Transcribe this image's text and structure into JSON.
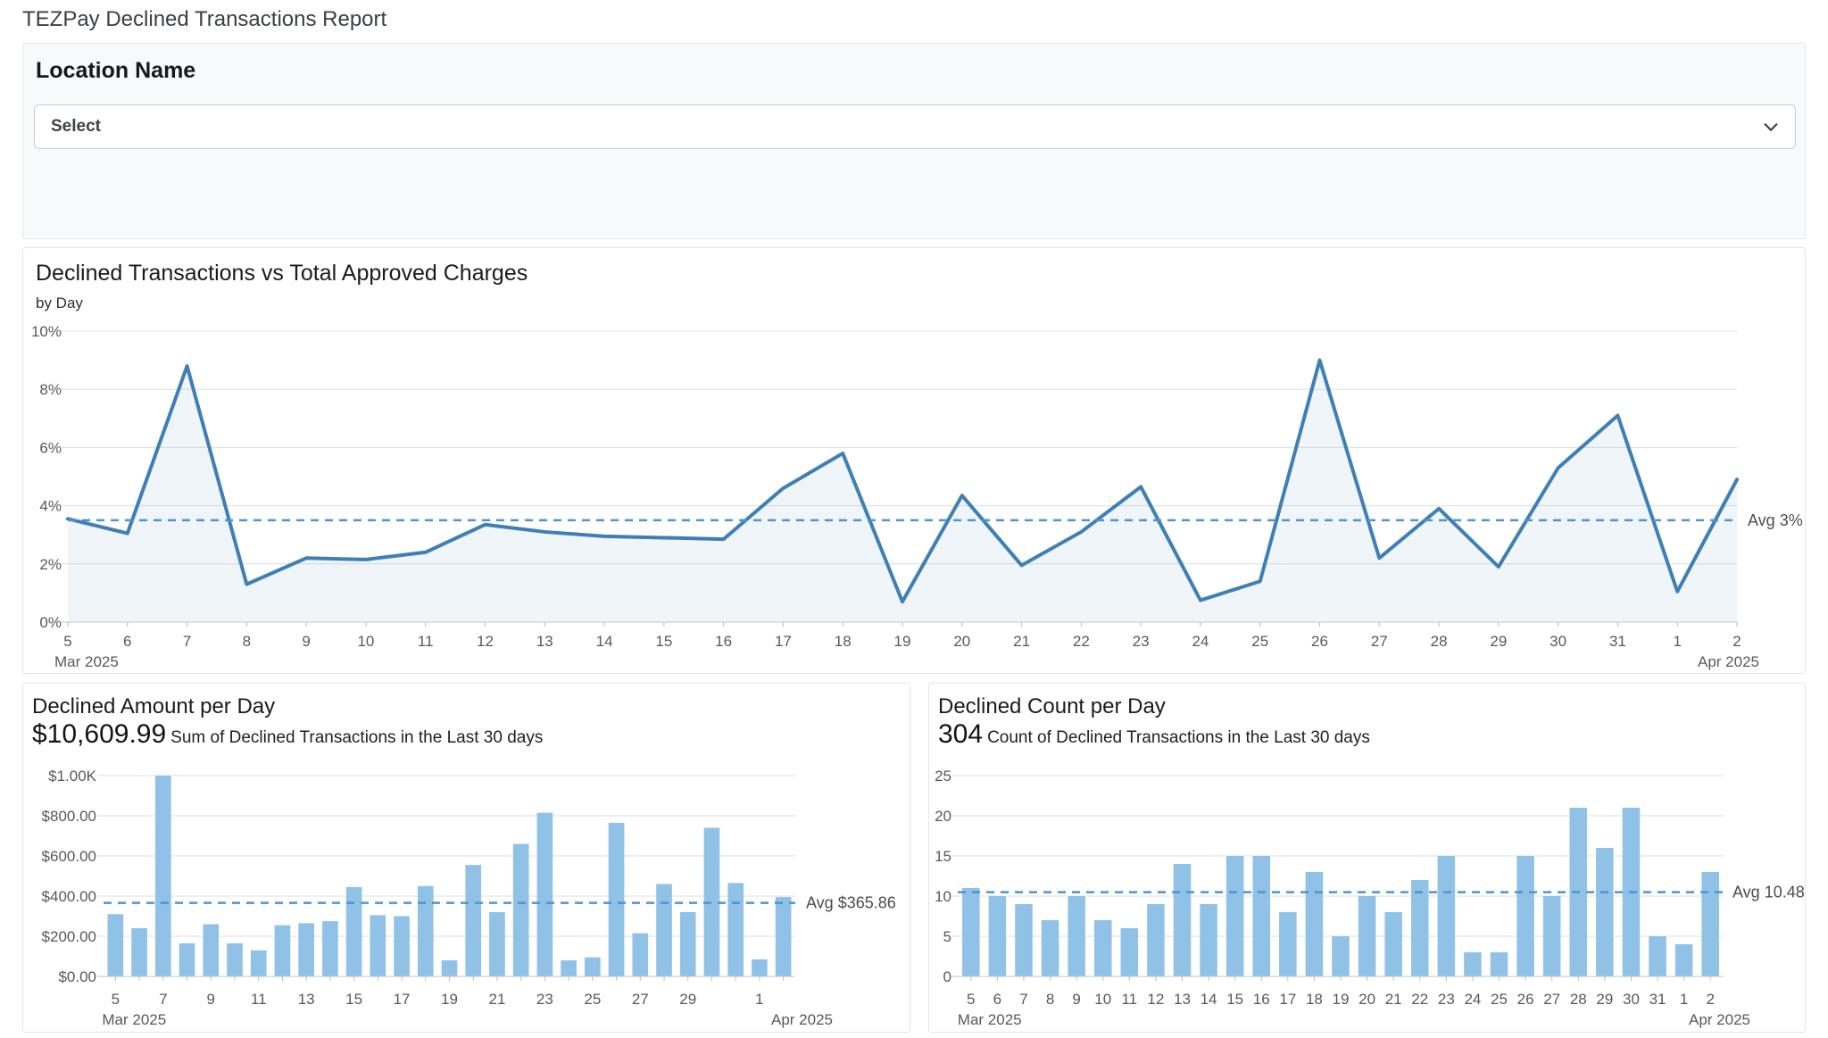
{
  "page": {
    "title": "TEZPay Declined Transactions Report"
  },
  "filter": {
    "label": "Location Name",
    "select_value": "Select",
    "select_icon": "chevron-down"
  },
  "colors": {
    "line": "#3e7fb6",
    "area_fill": "rgba(62,127,182,0.08)",
    "bar": "#8fc2e6",
    "avg_line": "#4f94d0",
    "grid": "#dcdfe1",
    "axis": "#c3c6c8",
    "tick": "#b9bcbe",
    "muted_text": "#56595b",
    "avg_text": "#4a4d4f"
  },
  "chart_data": [
    {
      "id": "rate",
      "type": "area",
      "title": "Declined Transactions vs Total Approved Charges",
      "subtitle": "by Day",
      "x": [
        "5",
        "6",
        "7",
        "8",
        "9",
        "10",
        "11",
        "12",
        "13",
        "14",
        "15",
        "16",
        "17",
        "18",
        "19",
        "20",
        "21",
        "22",
        "23",
        "24",
        "25",
        "26",
        "27",
        "28",
        "29",
        "30",
        "31",
        "1",
        "2"
      ],
      "x_months": {
        "first": "Mar 2025",
        "last": "Apr 2025"
      },
      "values": [
        3.55,
        3.05,
        8.8,
        1.3,
        2.2,
        2.15,
        2.4,
        3.35,
        3.1,
        2.95,
        2.9,
        2.85,
        4.6,
        5.8,
        0.7,
        4.35,
        1.95,
        3.1,
        4.65,
        0.75,
        1.4,
        9.0,
        2.2,
        3.9,
        1.9,
        5.3,
        7.1,
        1.05,
        4.9
      ],
      "unit": "%",
      "ylim": [
        0,
        10
      ],
      "y_ticks": [
        {
          "v": 0,
          "label": "0%"
        },
        {
          "v": 2,
          "label": "2%"
        },
        {
          "v": 4,
          "label": "4%"
        },
        {
          "v": 6,
          "label": "6%"
        },
        {
          "v": 8,
          "label": "8%"
        },
        {
          "v": 10,
          "label": "10%"
        }
      ],
      "avg": {
        "value": 3.5,
        "label": "Avg 3%"
      },
      "grid": true,
      "legend": "none"
    },
    {
      "id": "amount",
      "type": "bar",
      "title": "Declined Amount per Day",
      "stat_value": "$10,609.99",
      "stat_caption": "Sum of Declined Transactions in the Last 30 days",
      "x": [
        "5",
        "6",
        "7",
        "8",
        "9",
        "10",
        "11",
        "12",
        "13",
        "14",
        "15",
        "16",
        "17",
        "18",
        "19",
        "20",
        "21",
        "22",
        "23",
        "24",
        "25",
        "26",
        "27",
        "28",
        "29",
        "30",
        "31",
        "1",
        "2"
      ],
      "x_labels": [
        "5",
        "",
        "7",
        "",
        "9",
        "",
        "11",
        "",
        "13",
        "",
        "15",
        "",
        "17",
        "",
        "19",
        "",
        "21",
        "",
        "23",
        "",
        "25",
        "",
        "27",
        "",
        "29",
        "",
        "",
        "1",
        ""
      ],
      "x_months": {
        "first": "Mar 2025",
        "last": "Apr 2025"
      },
      "values": [
        310,
        240,
        1000,
        165,
        260,
        165,
        130,
        255,
        265,
        275,
        445,
        305,
        300,
        450,
        80,
        555,
        320,
        660,
        815,
        80,
        95,
        765,
        215,
        460,
        320,
        740,
        465,
        85,
        395
      ],
      "ylim": [
        0,
        1000
      ],
      "y_ticks": [
        {
          "v": 0,
          "label": "$0.00"
        },
        {
          "v": 200,
          "label": "$200.00"
        },
        {
          "v": 400,
          "label": "$400.00"
        },
        {
          "v": 600,
          "label": "$600.00"
        },
        {
          "v": 800,
          "label": "$800.00"
        },
        {
          "v": 1000,
          "label": "$1.00K"
        }
      ],
      "avg": {
        "value": 365.86,
        "label": "Avg $365.86"
      },
      "grid": true,
      "legend": "none"
    },
    {
      "id": "count",
      "type": "bar",
      "title": "Declined Count per Day",
      "stat_value": "304",
      "stat_caption": "Count of Declined Transactions in the Last 30 days",
      "x": [
        "5",
        "6",
        "7",
        "8",
        "9",
        "10",
        "11",
        "12",
        "13",
        "14",
        "15",
        "16",
        "17",
        "18",
        "19",
        "20",
        "21",
        "22",
        "23",
        "24",
        "25",
        "26",
        "27",
        "28",
        "29",
        "30",
        "31",
        "1",
        "2"
      ],
      "x_months": {
        "first": "Mar 2025",
        "last": "Apr 2025"
      },
      "values": [
        11,
        10,
        9,
        7,
        10,
        7,
        6,
        9,
        14,
        9,
        15,
        15,
        8,
        13,
        5,
        10,
        8,
        12,
        15,
        3,
        3,
        15,
        10,
        21,
        16,
        21,
        5,
        4,
        13
      ],
      "ylim": [
        0,
        25
      ],
      "y_ticks": [
        {
          "v": 0,
          "label": "0"
        },
        {
          "v": 5,
          "label": "5"
        },
        {
          "v": 10,
          "label": "10"
        },
        {
          "v": 15,
          "label": "15"
        },
        {
          "v": 20,
          "label": "20"
        },
        {
          "v": 25,
          "label": "25"
        }
      ],
      "avg": {
        "value": 10.48,
        "label": "Avg 10.48"
      },
      "grid": true,
      "legend": "none"
    }
  ]
}
